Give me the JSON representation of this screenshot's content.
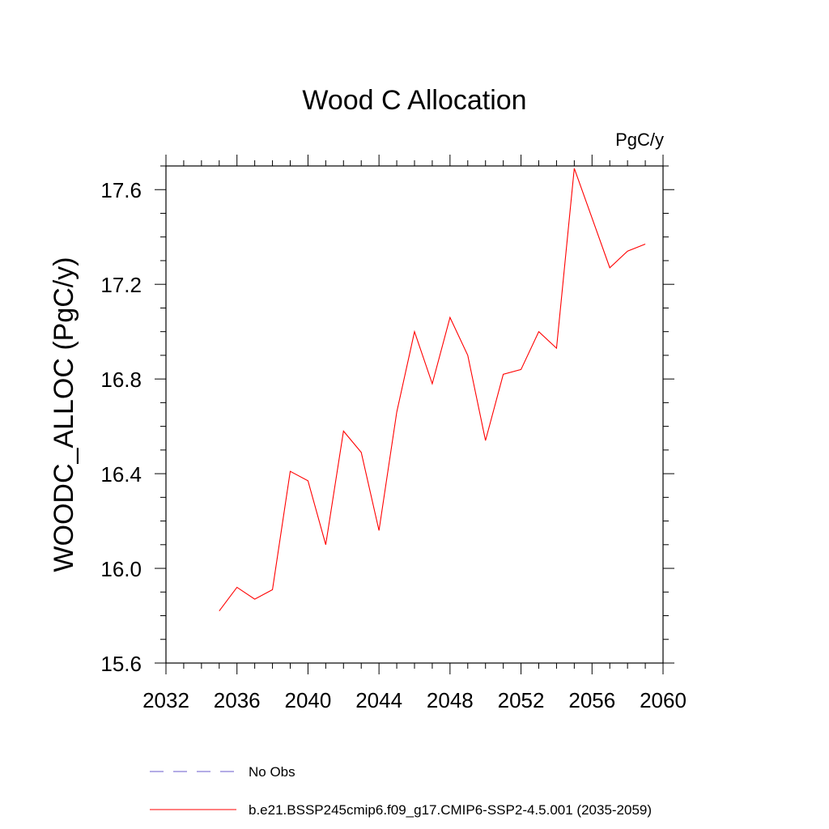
{
  "chart_data": {
    "type": "line",
    "title": "Wood C Allocation",
    "units": "PgC/y",
    "xlabel": "",
    "ylabel": "WOODC_ALLOC  (PgC/y)",
    "xlim": [
      2032,
      2060
    ],
    "ylim": [
      15.6,
      17.7
    ],
    "x_ticks": [
      2032,
      2036,
      2040,
      2044,
      2048,
      2052,
      2056,
      2060
    ],
    "x_minor_step": 1,
    "y_ticks": [
      15.6,
      16.0,
      16.4,
      16.8,
      17.2,
      17.6
    ],
    "y_tick_labels": [
      "15.6",
      "16.0",
      "16.4",
      "16.8",
      "17.2",
      "17.6"
    ],
    "y_minor_step": 0.1,
    "grid": false,
    "legend_position": "bottom",
    "series": [
      {
        "name": "No Obs",
        "style": "dashed",
        "color": "#6a5acd",
        "x": [],
        "y": []
      },
      {
        "name": "b.e21.BSSP245cmip6.f09_g17.CMIP6-SSP2-4.5.001 (2035-2059)",
        "style": "solid",
        "color": "#ff0000",
        "x": [
          2035,
          2036,
          2037,
          2038,
          2039,
          2040,
          2041,
          2042,
          2043,
          2044,
          2045,
          2046,
          2047,
          2048,
          2049,
          2050,
          2051,
          2052,
          2053,
          2054,
          2055,
          2056,
          2057,
          2058,
          2059
        ],
        "y": [
          15.82,
          15.92,
          15.87,
          15.91,
          16.41,
          16.37,
          16.1,
          16.58,
          16.49,
          16.16,
          16.66,
          17.0,
          16.78,
          17.06,
          16.9,
          16.54,
          16.82,
          16.84,
          17.0,
          16.93,
          17.69,
          17.48,
          17.27,
          17.34,
          17.37
        ]
      }
    ]
  }
}
